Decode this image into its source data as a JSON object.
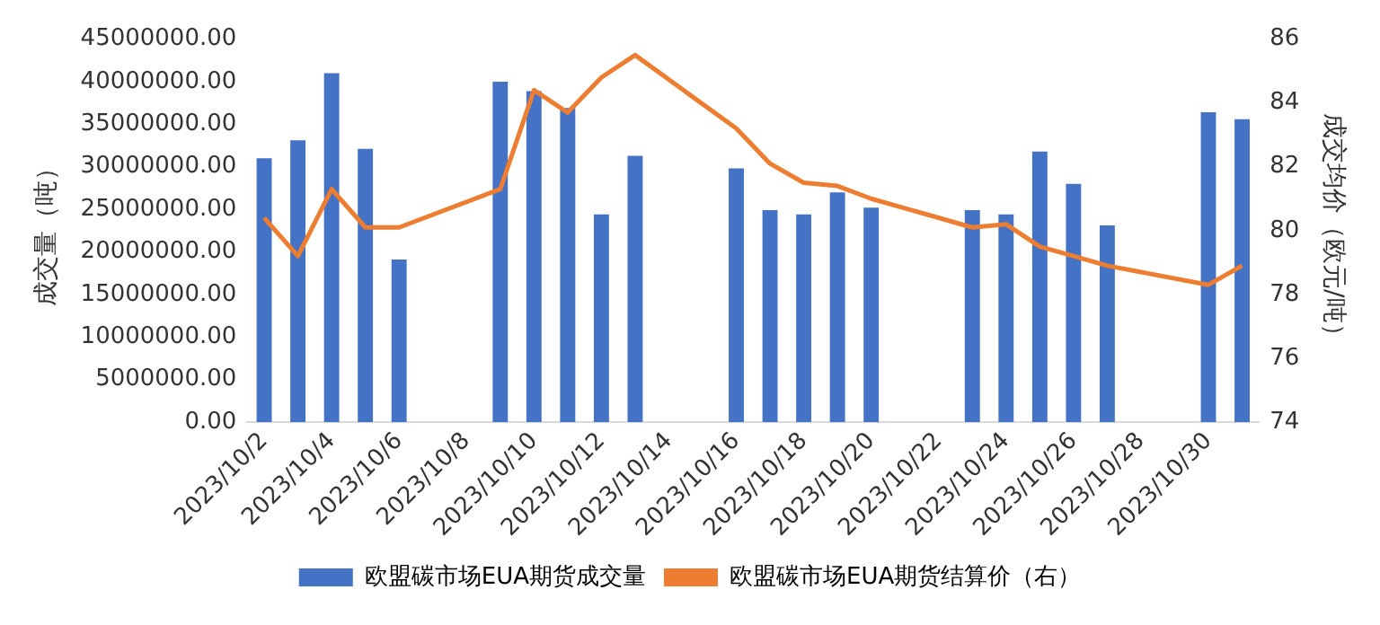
{
  "chart_data": {
    "type": "bar",
    "categories": [
      "2023/10/2",
      null,
      "2023/10/4",
      null,
      "2023/10/6",
      null,
      "2023/10/8",
      null,
      "2023/10/10",
      null,
      "2023/10/12",
      null,
      "2023/10/14",
      null,
      "2023/10/16",
      null,
      "2023/10/18",
      null,
      "2023/10/20",
      null,
      "2023/10/22",
      null,
      "2023/10/24",
      null,
      "2023/10/26",
      null,
      "2023/10/28",
      null,
      "2023/10/30",
      null
    ],
    "ylabel": "成交量（吨）",
    "y2label": "成交均价（欧元/吨）",
    "series": [
      {
        "name": "欧盟碳市场EUA期货成交量",
        "color": "#4472c4",
        "values": [
          31000000,
          33100000,
          41000000,
          32100000,
          19100000,
          null,
          null,
          40000000,
          38900000,
          36900000,
          24400000,
          31300000,
          null,
          null,
          29800000,
          24900000,
          24400000,
          27000000,
          25200000,
          null,
          null,
          24900000,
          24400000,
          31800000,
          28000000,
          23100000,
          null,
          null,
          36400000,
          35600000
        ]
      },
      {
        "name": "欧盟碳市场EUA期货结算价（右）",
        "type": "line",
        "axis": "y2",
        "color": "#ed7d31",
        "values": [
          80.4,
          79.2,
          81.3,
          80.1,
          80.1,
          null,
          null,
          81.3,
          84.4,
          83.7,
          84.8,
          85.5,
          null,
          null,
          83.2,
          82.1,
          81.5,
          81.4,
          81.0,
          null,
          null,
          80.1,
          80.2,
          79.5,
          79.2,
          78.9,
          null,
          null,
          78.3,
          78.9
        ]
      }
    ],
    "ylim": [
      0,
      45000000
    ],
    "yticks": [
      {
        "value": 0,
        "label": "0.00"
      },
      {
        "value": 5000000,
        "label": "5000000.00"
      },
      {
        "value": 10000000,
        "label": "10000000.00"
      },
      {
        "value": 15000000,
        "label": "15000000.00"
      },
      {
        "value": 20000000,
        "label": "20000000.00"
      },
      {
        "value": 25000000,
        "label": "25000000.00"
      },
      {
        "value": 30000000,
        "label": "30000000.00"
      },
      {
        "value": 35000000,
        "label": "35000000.00"
      },
      {
        "value": 40000000,
        "label": "40000000.00"
      },
      {
        "value": 45000000,
        "label": "45000000.00"
      }
    ],
    "y2lim": [
      74,
      86
    ],
    "y2ticks": [
      74,
      76,
      78,
      80,
      82,
      84,
      86
    ],
    "grid": false,
    "legend": "bottom",
    "marker": "none"
  }
}
